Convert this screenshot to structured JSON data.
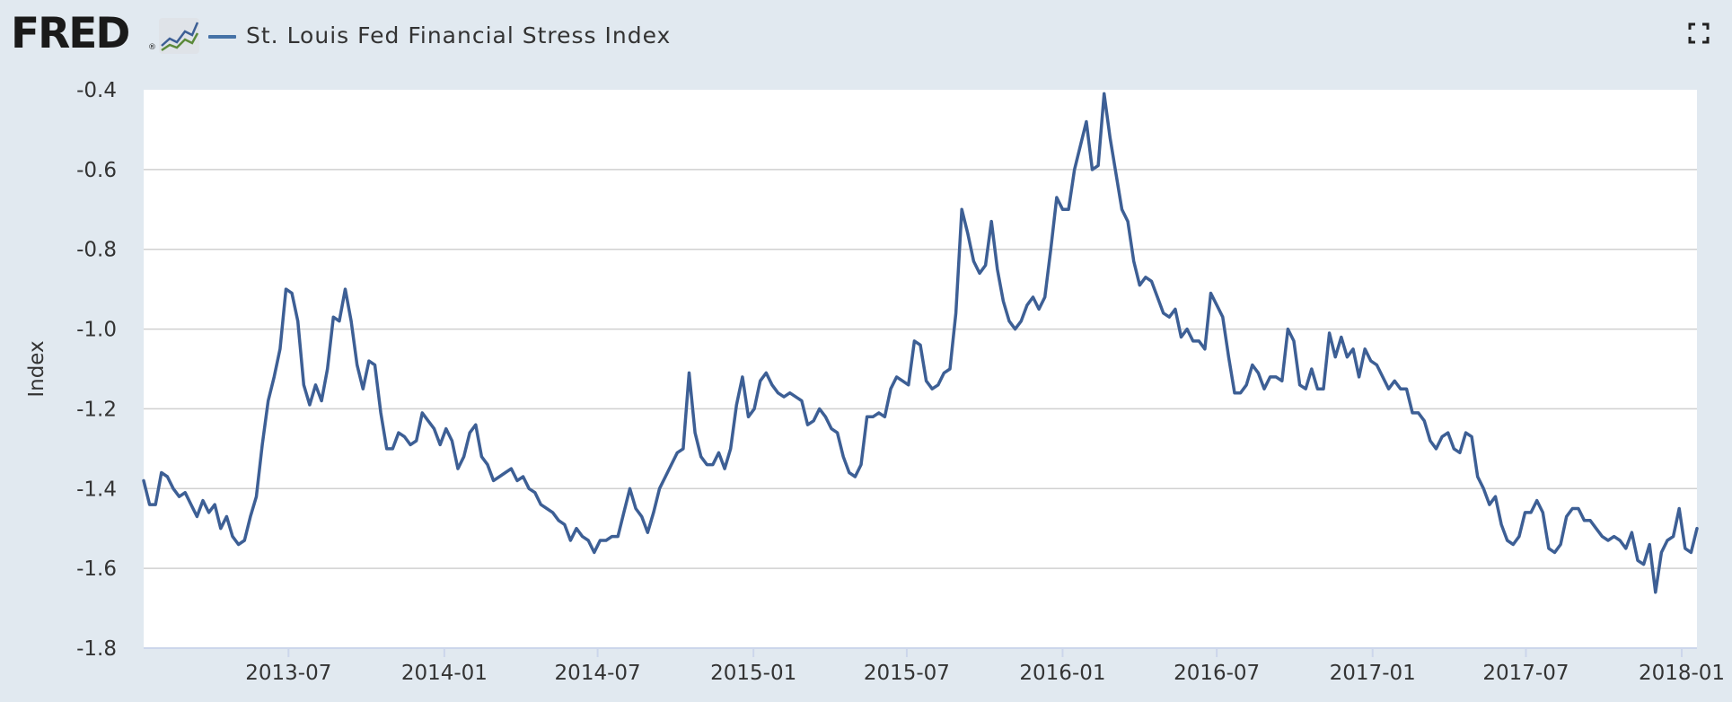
{
  "logo": {
    "text": "FRED",
    "reg": "®"
  },
  "header": {
    "series_title": "St. Louis Fed Financial Stress Index"
  },
  "icons": {
    "fullscreen": "fullscreen-icon",
    "graph": "line-graph-icon"
  },
  "colors": {
    "line": "#3d5f95",
    "plot_bg": "#ffffff",
    "page_bg": "#e1e9f0",
    "grid": "#d0d0d0",
    "legend": "#4572a7"
  },
  "chart_data": {
    "type": "line",
    "title": "",
    "ylabel": "Index",
    "xlabel": "",
    "ylim": [
      -1.8,
      -0.4
    ],
    "yticks": [
      -0.4,
      -0.6,
      -0.8,
      -1.0,
      -1.2,
      -1.4,
      -1.6,
      -1.8
    ],
    "ytick_labels": [
      "-0.4",
      "-0.6",
      "-0.8",
      "-1.0",
      "-1.2",
      "-1.4",
      "-1.6",
      "-1.8"
    ],
    "xlim": [
      "2013-01-11",
      "2018-01-19"
    ],
    "xticks": [
      "2013-07-01",
      "2014-01-01",
      "2014-07-01",
      "2015-01-01",
      "2015-07-01",
      "2016-01-01",
      "2016-07-01",
      "2017-01-01",
      "2017-07-01",
      "2018-01-01"
    ],
    "xtick_labels": [
      "2013-07",
      "2014-01",
      "2014-07",
      "2015-01",
      "2015-07",
      "2016-01",
      "2016-07",
      "2017-01",
      "2017-07",
      "2018-01"
    ],
    "grid": true,
    "legend": "top-left",
    "series": [
      {
        "name": "St. Louis Fed Financial Stress Index",
        "points": [
          [
            "2013-01-11",
            -1.38
          ],
          [
            "2013-01-18",
            -1.44
          ],
          [
            "2013-01-25",
            -1.44
          ],
          [
            "2013-02-01",
            -1.36
          ],
          [
            "2013-02-08",
            -1.37
          ],
          [
            "2013-02-15",
            -1.4
          ],
          [
            "2013-02-22",
            -1.42
          ],
          [
            "2013-03-01",
            -1.41
          ],
          [
            "2013-03-08",
            -1.44
          ],
          [
            "2013-03-15",
            -1.47
          ],
          [
            "2013-03-22",
            -1.43
          ],
          [
            "2013-03-29",
            -1.46
          ],
          [
            "2013-04-05",
            -1.44
          ],
          [
            "2013-04-12",
            -1.5
          ],
          [
            "2013-04-19",
            -1.47
          ],
          [
            "2013-04-26",
            -1.52
          ],
          [
            "2013-05-03",
            -1.54
          ],
          [
            "2013-05-10",
            -1.53
          ],
          [
            "2013-05-17",
            -1.47
          ],
          [
            "2013-05-24",
            -1.42
          ],
          [
            "2013-05-31",
            -1.29
          ],
          [
            "2013-06-07",
            -1.18
          ],
          [
            "2013-06-14",
            -1.12
          ],
          [
            "2013-06-21",
            -1.05
          ],
          [
            "2013-06-28",
            -0.9
          ],
          [
            "2013-07-05",
            -0.91
          ],
          [
            "2013-07-12",
            -0.98
          ],
          [
            "2013-07-19",
            -1.14
          ],
          [
            "2013-07-26",
            -1.19
          ],
          [
            "2013-08-02",
            -1.14
          ],
          [
            "2013-08-09",
            -1.18
          ],
          [
            "2013-08-16",
            -1.1
          ],
          [
            "2013-08-23",
            -0.97
          ],
          [
            "2013-08-30",
            -0.98
          ],
          [
            "2013-09-06",
            -0.9
          ],
          [
            "2013-09-13",
            -0.98
          ],
          [
            "2013-09-20",
            -1.09
          ],
          [
            "2013-09-27",
            -1.15
          ],
          [
            "2013-10-04",
            -1.08
          ],
          [
            "2013-10-11",
            -1.09
          ],
          [
            "2013-10-18",
            -1.21
          ],
          [
            "2013-10-25",
            -1.3
          ],
          [
            "2013-11-01",
            -1.3
          ],
          [
            "2013-11-08",
            -1.26
          ],
          [
            "2013-11-15",
            -1.27
          ],
          [
            "2013-11-22",
            -1.29
          ],
          [
            "2013-11-29",
            -1.28
          ],
          [
            "2013-12-06",
            -1.21
          ],
          [
            "2013-12-13",
            -1.23
          ],
          [
            "2013-12-20",
            -1.25
          ],
          [
            "2013-12-27",
            -1.29
          ],
          [
            "2014-01-03",
            -1.25
          ],
          [
            "2014-01-10",
            -1.28
          ],
          [
            "2014-01-17",
            -1.35
          ],
          [
            "2014-01-24",
            -1.32
          ],
          [
            "2014-01-31",
            -1.26
          ],
          [
            "2014-02-07",
            -1.24
          ],
          [
            "2014-02-14",
            -1.32
          ],
          [
            "2014-02-21",
            -1.34
          ],
          [
            "2014-02-28",
            -1.38
          ],
          [
            "2014-03-07",
            -1.37
          ],
          [
            "2014-03-14",
            -1.36
          ],
          [
            "2014-03-21",
            -1.35
          ],
          [
            "2014-03-28",
            -1.38
          ],
          [
            "2014-04-04",
            -1.37
          ],
          [
            "2014-04-11",
            -1.4
          ],
          [
            "2014-04-18",
            -1.41
          ],
          [
            "2014-04-25",
            -1.44
          ],
          [
            "2014-05-02",
            -1.45
          ],
          [
            "2014-05-09",
            -1.46
          ],
          [
            "2014-05-16",
            -1.48
          ],
          [
            "2014-05-23",
            -1.49
          ],
          [
            "2014-05-30",
            -1.53
          ],
          [
            "2014-06-06",
            -1.5
          ],
          [
            "2014-06-13",
            -1.52
          ],
          [
            "2014-06-20",
            -1.53
          ],
          [
            "2014-06-27",
            -1.56
          ],
          [
            "2014-07-04",
            -1.53
          ],
          [
            "2014-07-11",
            -1.53
          ],
          [
            "2014-07-18",
            -1.52
          ],
          [
            "2014-07-25",
            -1.52
          ],
          [
            "2014-08-01",
            -1.46
          ],
          [
            "2014-08-08",
            -1.4
          ],
          [
            "2014-08-15",
            -1.45
          ],
          [
            "2014-08-22",
            -1.47
          ],
          [
            "2014-08-29",
            -1.51
          ],
          [
            "2014-09-05",
            -1.46
          ],
          [
            "2014-09-12",
            -1.4
          ],
          [
            "2014-09-19",
            -1.37
          ],
          [
            "2014-09-26",
            -1.34
          ],
          [
            "2014-10-03",
            -1.31
          ],
          [
            "2014-10-10",
            -1.3
          ],
          [
            "2014-10-17",
            -1.11
          ],
          [
            "2014-10-24",
            -1.26
          ],
          [
            "2014-10-31",
            -1.32
          ],
          [
            "2014-11-07",
            -1.34
          ],
          [
            "2014-11-14",
            -1.34
          ],
          [
            "2014-11-21",
            -1.31
          ],
          [
            "2014-11-28",
            -1.35
          ],
          [
            "2014-12-05",
            -1.3
          ],
          [
            "2014-12-12",
            -1.19
          ],
          [
            "2014-12-19",
            -1.12
          ],
          [
            "2014-12-26",
            -1.22
          ],
          [
            "2015-01-02",
            -1.2
          ],
          [
            "2015-01-09",
            -1.13
          ],
          [
            "2015-01-16",
            -1.11
          ],
          [
            "2015-01-23",
            -1.14
          ],
          [
            "2015-01-30",
            -1.16
          ],
          [
            "2015-02-06",
            -1.17
          ],
          [
            "2015-02-13",
            -1.16
          ],
          [
            "2015-02-20",
            -1.17
          ],
          [
            "2015-02-27",
            -1.18
          ],
          [
            "2015-03-06",
            -1.24
          ],
          [
            "2015-03-13",
            -1.23
          ],
          [
            "2015-03-20",
            -1.2
          ],
          [
            "2015-03-27",
            -1.22
          ],
          [
            "2015-04-03",
            -1.25
          ],
          [
            "2015-04-10",
            -1.26
          ],
          [
            "2015-04-17",
            -1.32
          ],
          [
            "2015-04-24",
            -1.36
          ],
          [
            "2015-05-01",
            -1.37
          ],
          [
            "2015-05-08",
            -1.34
          ],
          [
            "2015-05-15",
            -1.22
          ],
          [
            "2015-05-22",
            -1.22
          ],
          [
            "2015-05-29",
            -1.21
          ],
          [
            "2015-06-05",
            -1.22
          ],
          [
            "2015-06-12",
            -1.15
          ],
          [
            "2015-06-19",
            -1.12
          ],
          [
            "2015-06-26",
            -1.13
          ],
          [
            "2015-07-03",
            -1.14
          ],
          [
            "2015-07-10",
            -1.03
          ],
          [
            "2015-07-17",
            -1.04
          ],
          [
            "2015-07-24",
            -1.13
          ],
          [
            "2015-07-31",
            -1.15
          ],
          [
            "2015-08-07",
            -1.14
          ],
          [
            "2015-08-14",
            -1.11
          ],
          [
            "2015-08-21",
            -1.1
          ],
          [
            "2015-08-28",
            -0.96
          ],
          [
            "2015-09-04",
            -0.7
          ],
          [
            "2015-09-11",
            -0.76
          ],
          [
            "2015-09-18",
            -0.83
          ],
          [
            "2015-09-25",
            -0.86
          ],
          [
            "2015-10-02",
            -0.84
          ],
          [
            "2015-10-09",
            -0.73
          ],
          [
            "2015-10-16",
            -0.85
          ],
          [
            "2015-10-23",
            -0.93
          ],
          [
            "2015-10-30",
            -0.98
          ],
          [
            "2015-11-06",
            -1.0
          ],
          [
            "2015-11-13",
            -0.98
          ],
          [
            "2015-11-20",
            -0.94
          ],
          [
            "2015-11-27",
            -0.92
          ],
          [
            "2015-12-04",
            -0.95
          ],
          [
            "2015-12-11",
            -0.92
          ],
          [
            "2015-12-18",
            -0.8
          ],
          [
            "2015-12-25",
            -0.67
          ],
          [
            "2016-01-01",
            -0.7
          ],
          [
            "2016-01-08",
            -0.7
          ],
          [
            "2016-01-15",
            -0.6
          ],
          [
            "2016-01-22",
            -0.54
          ],
          [
            "2016-01-29",
            -0.48
          ],
          [
            "2016-02-05",
            -0.6
          ],
          [
            "2016-02-12",
            -0.59
          ],
          [
            "2016-02-19",
            -0.41
          ],
          [
            "2016-02-26",
            -0.52
          ],
          [
            "2016-03-04",
            -0.61
          ],
          [
            "2016-03-11",
            -0.7
          ],
          [
            "2016-03-18",
            -0.73
          ],
          [
            "2016-03-25",
            -0.83
          ],
          [
            "2016-04-01",
            -0.89
          ],
          [
            "2016-04-08",
            -0.87
          ],
          [
            "2016-04-15",
            -0.88
          ],
          [
            "2016-04-22",
            -0.92
          ],
          [
            "2016-04-29",
            -0.96
          ],
          [
            "2016-05-06",
            -0.97
          ],
          [
            "2016-05-13",
            -0.95
          ],
          [
            "2016-05-20",
            -1.02
          ],
          [
            "2016-05-27",
            -1.0
          ],
          [
            "2016-06-03",
            -1.03
          ],
          [
            "2016-06-10",
            -1.03
          ],
          [
            "2016-06-17",
            -1.05
          ],
          [
            "2016-06-24",
            -0.91
          ],
          [
            "2016-07-01",
            -0.94
          ],
          [
            "2016-07-08",
            -0.97
          ],
          [
            "2016-07-15",
            -1.07
          ],
          [
            "2016-07-22",
            -1.16
          ],
          [
            "2016-07-29",
            -1.16
          ],
          [
            "2016-08-05",
            -1.14
          ],
          [
            "2016-08-12",
            -1.09
          ],
          [
            "2016-08-19",
            -1.11
          ],
          [
            "2016-08-26",
            -1.15
          ],
          [
            "2016-09-02",
            -1.12
          ],
          [
            "2016-09-09",
            -1.12
          ],
          [
            "2016-09-16",
            -1.13
          ],
          [
            "2016-09-23",
            -1.0
          ],
          [
            "2016-09-30",
            -1.03
          ],
          [
            "2016-10-07",
            -1.14
          ],
          [
            "2016-10-14",
            -1.15
          ],
          [
            "2016-10-21",
            -1.1
          ],
          [
            "2016-10-28",
            -1.15
          ],
          [
            "2016-11-04",
            -1.15
          ],
          [
            "2016-11-11",
            -1.01
          ],
          [
            "2016-11-18",
            -1.07
          ],
          [
            "2016-11-25",
            -1.02
          ],
          [
            "2016-12-02",
            -1.07
          ],
          [
            "2016-12-09",
            -1.05
          ],
          [
            "2016-12-16",
            -1.12
          ],
          [
            "2016-12-23",
            -1.05
          ],
          [
            "2016-12-30",
            -1.08
          ],
          [
            "2017-01-06",
            -1.09
          ],
          [
            "2017-01-13",
            -1.12
          ],
          [
            "2017-01-20",
            -1.15
          ],
          [
            "2017-01-27",
            -1.13
          ],
          [
            "2017-02-03",
            -1.15
          ],
          [
            "2017-02-10",
            -1.15
          ],
          [
            "2017-02-17",
            -1.21
          ],
          [
            "2017-02-24",
            -1.21
          ],
          [
            "2017-03-03",
            -1.23
          ],
          [
            "2017-03-10",
            -1.28
          ],
          [
            "2017-03-17",
            -1.3
          ],
          [
            "2017-03-24",
            -1.27
          ],
          [
            "2017-03-31",
            -1.26
          ],
          [
            "2017-04-07",
            -1.3
          ],
          [
            "2017-04-14",
            -1.31
          ],
          [
            "2017-04-21",
            -1.26
          ],
          [
            "2017-04-28",
            -1.27
          ],
          [
            "2017-05-05",
            -1.37
          ],
          [
            "2017-05-12",
            -1.4
          ],
          [
            "2017-05-19",
            -1.44
          ],
          [
            "2017-05-26",
            -1.42
          ],
          [
            "2017-06-02",
            -1.49
          ],
          [
            "2017-06-09",
            -1.53
          ],
          [
            "2017-06-16",
            -1.54
          ],
          [
            "2017-06-23",
            -1.52
          ],
          [
            "2017-06-30",
            -1.46
          ],
          [
            "2017-07-07",
            -1.46
          ],
          [
            "2017-07-14",
            -1.43
          ],
          [
            "2017-07-21",
            -1.46
          ],
          [
            "2017-07-28",
            -1.55
          ],
          [
            "2017-08-04",
            -1.56
          ],
          [
            "2017-08-11",
            -1.54
          ],
          [
            "2017-08-18",
            -1.47
          ],
          [
            "2017-08-25",
            -1.45
          ],
          [
            "2017-09-01",
            -1.45
          ],
          [
            "2017-09-08",
            -1.48
          ],
          [
            "2017-09-15",
            -1.48
          ],
          [
            "2017-09-22",
            -1.5
          ],
          [
            "2017-09-29",
            -1.52
          ],
          [
            "2017-10-06",
            -1.53
          ],
          [
            "2017-10-13",
            -1.52
          ],
          [
            "2017-10-20",
            -1.53
          ],
          [
            "2017-10-27",
            -1.55
          ],
          [
            "2017-11-03",
            -1.51
          ],
          [
            "2017-11-10",
            -1.58
          ],
          [
            "2017-11-17",
            -1.59
          ],
          [
            "2017-11-24",
            -1.54
          ],
          [
            "2017-12-01",
            -1.66
          ],
          [
            "2017-12-08",
            -1.56
          ],
          [
            "2017-12-15",
            -1.53
          ],
          [
            "2017-12-22",
            -1.52
          ],
          [
            "2017-12-29",
            -1.45
          ],
          [
            "2018-01-05",
            -1.55
          ],
          [
            "2018-01-12",
            -1.56
          ],
          [
            "2018-01-19",
            -1.5
          ]
        ]
      }
    ]
  }
}
